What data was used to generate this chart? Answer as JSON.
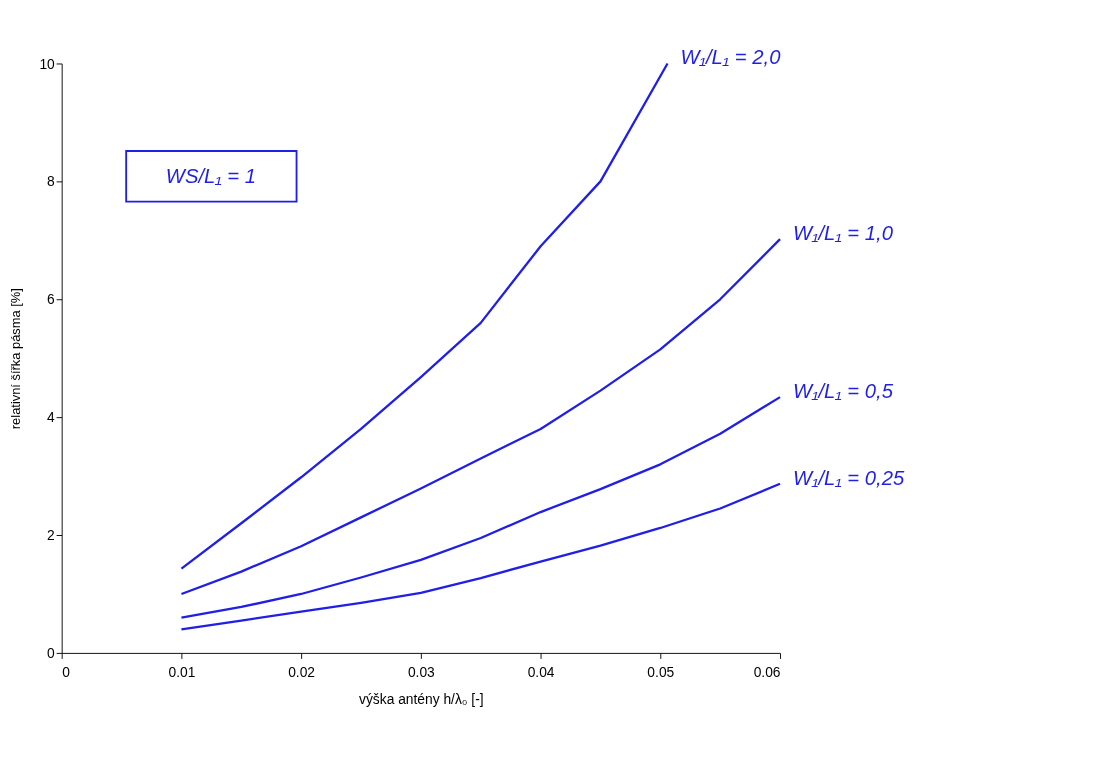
{
  "chart_data": {
    "type": "line",
    "xlabel": "výška antény h/λ₀ [-]",
    "ylabel": "relativní šířka pásma [%]",
    "xlim": [
      0,
      0.06
    ],
    "xticks": [
      0,
      0.01,
      0.02,
      0.03,
      0.04,
      0.05,
      0.06
    ],
    "ylim": [
      0,
      10
    ],
    "yticks": [
      0,
      2,
      4,
      6,
      8,
      10
    ],
    "grid": false,
    "legend": false,
    "marker": "none",
    "line_style": "solid",
    "annotations": [
      "WS/L₁ = 1"
    ],
    "series": [
      {
        "name": "W₁/L₁ = 2,0",
        "color": "#1f1fe8",
        "x": [
          0.01,
          0.015,
          0.02,
          0.025,
          0.03,
          0.035,
          0.04,
          0.045,
          0.0506
        ],
        "values": [
          1.43,
          2.2,
          2.98,
          3.8,
          4.68,
          5.6,
          6.9,
          8.0,
          10
        ]
      },
      {
        "name": "W₁/L₁ = 1,0",
        "color": "#1f1fe8",
        "x": [
          0.01,
          0.015,
          0.02,
          0.025,
          0.03,
          0.035,
          0.04,
          0.045,
          0.05,
          0.055,
          0.06
        ],
        "values": [
          1.0,
          1.38,
          1.81,
          2.3,
          2.79,
          3.3,
          3.8,
          4.45,
          5.15,
          6.0,
          7.02
        ]
      },
      {
        "name": "W₁/L₁ = 0,5",
        "color": "#1f1fe8",
        "x": [
          0.01,
          0.015,
          0.02,
          0.025,
          0.03,
          0.035,
          0.04,
          0.045,
          0.05,
          0.055,
          0.06
        ],
        "values": [
          0.6,
          0.78,
          1.0,
          1.28,
          1.58,
          1.95,
          2.39,
          2.78,
          3.2,
          3.72,
          4.34
        ]
      },
      {
        "name": "W₁/L₁ = 0,25",
        "color": "#1f1fe8",
        "x": [
          0.01,
          0.015,
          0.02,
          0.025,
          0.03,
          0.035,
          0.04,
          0.045,
          0.05,
          0.055,
          0.06
        ],
        "values": [
          0.4,
          0.55,
          0.7,
          0.85,
          1.02,
          1.27,
          1.55,
          1.82,
          2.12,
          2.45,
          2.87
        ]
      }
    ]
  }
}
